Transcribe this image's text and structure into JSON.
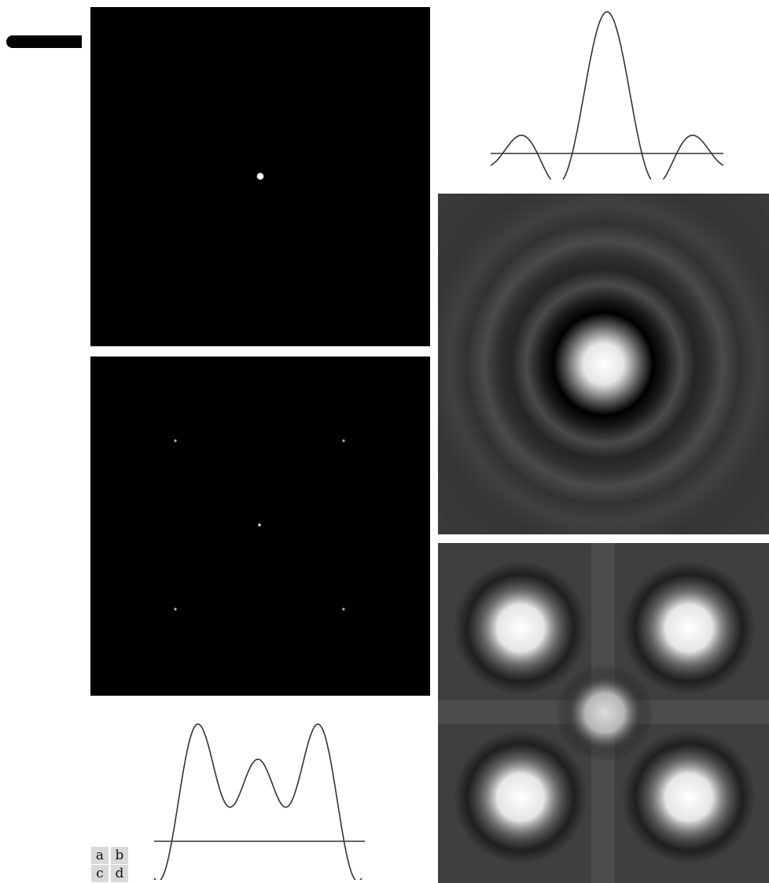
{
  "figure": {
    "panel_labels": {
      "a": "a",
      "b": "b",
      "c": "c",
      "d": "d"
    },
    "panels": [
      {
        "id": "a",
        "description_type": "single-impulse",
        "impulse_count": 1
      },
      {
        "id": "b",
        "description_type": "airy-pattern"
      },
      {
        "id": "c",
        "description_type": "five-impulses",
        "impulse_count": 5
      },
      {
        "id": "d",
        "description_type": "five-airy-pattern-superposition"
      }
    ],
    "profiles": [
      {
        "id": "profile-b",
        "peaks": 1
      },
      {
        "id": "profile-d",
        "peaks": 3
      }
    ],
    "colors": {
      "background": "#ffffff",
      "panel": "#000000",
      "line": "#333333",
      "label_box": "#d9d9d9"
    }
  }
}
